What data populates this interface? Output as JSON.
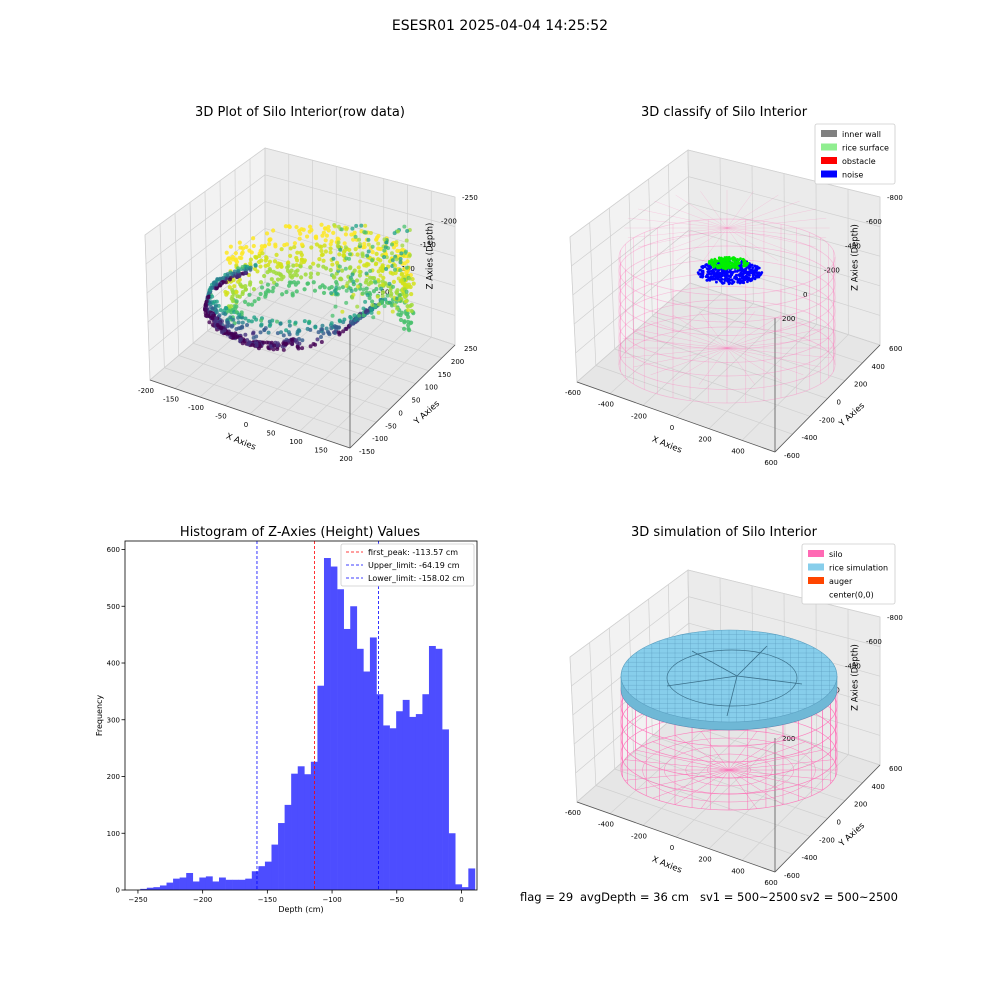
{
  "figure": {
    "suptitle": "ESESR01 2025-04-04 14:25:52"
  },
  "status": {
    "flag": "flag = 29",
    "avg_depth": "avgDepth = 36 cm",
    "sv1": "sv1 = 500~2500",
    "sv2": "sv2 = 500~2500"
  },
  "colors": {
    "silo": "#ff69b4",
    "rice_simulation": "#87ceeb",
    "auger": "#ff4500",
    "inner_wall": "#808080",
    "rice_surface": "#90ee90",
    "obstacle": "#ff0000",
    "noise": "#0000ff",
    "histogram": "#4d4dff",
    "first_peak_line": "#ff0000",
    "limit_lines": "#0000ff"
  },
  "chart_data": [
    {
      "type": "scatter",
      "title": "3D Plot of Silo Interior(row data)",
      "xlabel": "X Axies",
      "ylabel": "Y Axies",
      "zlabel": "Z Axies (Depth)",
      "x_ticks": [
        "-200",
        "-150",
        "-100",
        "-50",
        "0",
        "50",
        "100",
        "150",
        "200"
      ],
      "y_ticks": [
        "-150",
        "-100",
        "-50",
        "0",
        "50",
        "100",
        "150",
        "200",
        "250"
      ],
      "z_ticks": [
        "0",
        "-50",
        "-100",
        "-150",
        "-200",
        "-250"
      ],
      "xlim": [
        -220,
        200
      ],
      "ylim": [
        -160,
        250
      ],
      "zlim": [
        -265,
        0
      ],
      "colormap": "viridis (colored by depth)"
    },
    {
      "type": "scatter",
      "title": "3D classify of Silo Interior",
      "xlabel": "X Axies",
      "ylabel": "Y Axies",
      "zlabel": "Z Axies (Depth)",
      "x_ticks": [
        "-600",
        "-400",
        "-200",
        "0",
        "200",
        "400",
        "600"
      ],
      "y_ticks": [
        "-600",
        "-400",
        "-200",
        "0",
        "200",
        "400",
        "600"
      ],
      "z_ticks": [
        "200",
        "0",
        "-200",
        "-400",
        "-600",
        "-800"
      ],
      "legend": [
        {
          "label": "inner wall",
          "color": "#808080"
        },
        {
          "label": "rice surface",
          "color": "#90ee90"
        },
        {
          "label": "obstacle",
          "color": "#ff0000"
        },
        {
          "label": "noise",
          "color": "#0000ff"
        }
      ],
      "legend_position": "top-right"
    },
    {
      "type": "bar",
      "title": "Histogram of Z-Axies (Height) Values",
      "xlabel": "Depth (cm)",
      "ylabel": "Frequency",
      "xlim": [
        -260,
        12
      ],
      "ylim": [
        0,
        615
      ],
      "x_ticks": [
        -250,
        -200,
        -150,
        -100,
        -50,
        0
      ],
      "y_ticks": [
        0,
        100,
        200,
        300,
        400,
        500,
        600
      ],
      "bin_start": -248.2,
      "bin_width": 5.07,
      "values": [
        2,
        4,
        5,
        8,
        13,
        20,
        22,
        30,
        15,
        22,
        24,
        15,
        22,
        18,
        18,
        18,
        20,
        33,
        42,
        50,
        80,
        118,
        150,
        205,
        218,
        204,
        226,
        360,
        585,
        570,
        530,
        460,
        500,
        425,
        385,
        445,
        345,
        290,
        285,
        315,
        335,
        305,
        310,
        345,
        430,
        425,
        283,
        100,
        10,
        5,
        38
      ],
      "vlines": [
        {
          "label": "first_peak: -113.57 cm",
          "x": -113.57,
          "color": "#ff0000"
        },
        {
          "label": "Upper_limit: -64.19 cm",
          "x": -64.19,
          "color": "#0000ff"
        },
        {
          "label": "Lower_limit: -158.02 cm",
          "x": -158.02,
          "color": "#0000ff"
        }
      ],
      "legend_position": "top-right"
    },
    {
      "type": "other",
      "title": "3D simulation of Silo Interior",
      "xlabel": "X Axies",
      "ylabel": "Y Axies",
      "zlabel": "Z Axies (Depth)",
      "x_ticks": [
        "-600",
        "-400",
        "-200",
        "0",
        "200",
        "400",
        "600"
      ],
      "y_ticks": [
        "-600",
        "-400",
        "-200",
        "0",
        "200",
        "400",
        "600"
      ],
      "z_ticks": [
        "200",
        "0",
        "-200",
        "-400",
        "-600",
        "-800"
      ],
      "legend": [
        {
          "label": "silo",
          "color": "#ff69b4"
        },
        {
          "label": "rice simulation",
          "color": "#87ceeb"
        },
        {
          "label": "auger",
          "color": "#ff4500"
        },
        {
          "label": "center(0,0)",
          "color": ""
        }
      ],
      "legend_position": "top-right"
    }
  ]
}
